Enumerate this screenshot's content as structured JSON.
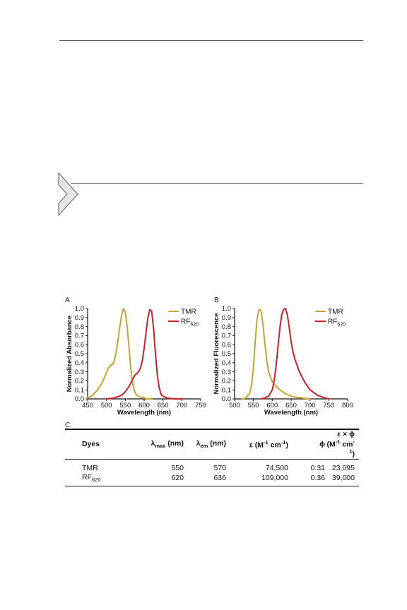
{
  "panels": {
    "a": "A",
    "b": "B",
    "c": "C"
  },
  "colors": {
    "tmr": "#c8a431",
    "rf620": "#cf2027"
  },
  "chart_data": [
    {
      "type": "line",
      "xlabel": "Wavelength (nm)",
      "ylabel": "Normalized Absorbance",
      "xlim": [
        450,
        750
      ],
      "ylim": [
        0,
        1.0
      ],
      "xticks": [
        450,
        500,
        550,
        600,
        650,
        700,
        750
      ],
      "yticks": [
        0.0,
        0.1,
        0.2,
        0.3,
        0.4,
        0.5,
        0.6,
        0.7,
        0.8,
        0.9,
        1.0
      ],
      "legend_position": "top-right",
      "series": [
        {
          "name": "TMR",
          "color": "#c8a431",
          "x": [
            450,
            460,
            470,
            480,
            490,
            500,
            505,
            510,
            515,
            520,
            525,
            530,
            535,
            540,
            545,
            550,
            555,
            560,
            565,
            570,
            575,
            580,
            590,
            600,
            610,
            620
          ],
          "y": [
            0.01,
            0.03,
            0.07,
            0.12,
            0.19,
            0.29,
            0.34,
            0.37,
            0.38,
            0.41,
            0.5,
            0.63,
            0.78,
            0.92,
            1.0,
            0.96,
            0.8,
            0.56,
            0.32,
            0.16,
            0.08,
            0.04,
            0.02,
            0.01,
            0.0,
            0.0
          ]
        },
        {
          "name": "RF620",
          "color": "#cf2027",
          "x": [
            500,
            520,
            540,
            550,
            560,
            570,
            575,
            580,
            585,
            590,
            595,
            600,
            605,
            610,
            615,
            620,
            625,
            630,
            635,
            640,
            645,
            650,
            660,
            680,
            700
          ],
          "y": [
            0.0,
            0.01,
            0.04,
            0.08,
            0.14,
            0.22,
            0.26,
            0.28,
            0.3,
            0.34,
            0.42,
            0.56,
            0.74,
            0.9,
            0.99,
            0.97,
            0.78,
            0.5,
            0.26,
            0.12,
            0.05,
            0.03,
            0.01,
            0.0,
            0.0
          ]
        }
      ]
    },
    {
      "type": "line",
      "xlabel": "Wavelength (nm)",
      "ylabel": "Normalized Fluorescence",
      "xlim": [
        500,
        800
      ],
      "ylim": [
        0,
        1.0
      ],
      "xticks": [
        500,
        550,
        600,
        650,
        700,
        750,
        800
      ],
      "yticks": [
        0.0,
        0.1,
        0.2,
        0.3,
        0.4,
        0.5,
        0.6,
        0.7,
        0.8,
        0.9,
        1.0
      ],
      "legend_position": "top-right",
      "series": [
        {
          "name": "TMR",
          "color": "#c8a431",
          "x": [
            520,
            530,
            540,
            545,
            550,
            555,
            560,
            565,
            570,
            575,
            580,
            585,
            590,
            600,
            610,
            620,
            630,
            640,
            650,
            660,
            680,
            700
          ],
          "y": [
            0.0,
            0.01,
            0.06,
            0.15,
            0.35,
            0.65,
            0.9,
            0.99,
            0.98,
            0.84,
            0.62,
            0.44,
            0.3,
            0.19,
            0.14,
            0.1,
            0.07,
            0.05,
            0.03,
            0.02,
            0.01,
            0.0
          ]
        },
        {
          "name": "RF620",
          "color": "#cf2027",
          "x": [
            570,
            580,
            590,
            600,
            605,
            610,
            615,
            620,
            625,
            630,
            635,
            640,
            645,
            650,
            655,
            660,
            670,
            680,
            690,
            700,
            720,
            740,
            750
          ],
          "y": [
            0.0,
            0.01,
            0.03,
            0.1,
            0.2,
            0.36,
            0.57,
            0.78,
            0.93,
            0.99,
            1.0,
            0.93,
            0.79,
            0.63,
            0.52,
            0.44,
            0.32,
            0.23,
            0.16,
            0.1,
            0.04,
            0.01,
            0.0
          ]
        }
      ]
    },
    {
      "type": "table",
      "headers": [
        "Dyes",
        "λmax (nm)",
        "λem (nm)",
        "ε (M-1 cm-1)",
        "ϕ",
        "ε × ϕ (M-1 cm-1)"
      ],
      "rows": [
        [
          "TMR",
          "550",
          "570",
          "74,500",
          "0.31",
          "23,095"
        ],
        [
          "RF620",
          "620",
          "636",
          "109,000",
          "0.36",
          "39,000"
        ]
      ]
    }
  ],
  "legend": {
    "tmr": "TMR",
    "rf_main": "RF",
    "rf_sub": "620"
  },
  "table": {
    "h_dyes": "Dyes",
    "h_lmax": "λ",
    "h_lmax_sub": "max",
    "h_lmax_unit": " (nm)",
    "h_lem": "λ",
    "h_lem_sub": "em",
    "h_lem_unit": " (nm)",
    "h_eps_a": "ε (M",
    "h_eps_sup1": "-1",
    "h_eps_b": " cm",
    "h_eps_sup2": "-1",
    "h_eps_c": ")",
    "h_phi": "ϕ",
    "h_prod_a": "ε × ϕ (M",
    "h_prod_sup1": "-1",
    "h_prod_b": " cm",
    "h_prod_sup2": "-1",
    "h_prod_c": ")",
    "r1": {
      "dye": "TMR",
      "lmax": "550",
      "lem": "570",
      "eps": "74,500",
      "phi": "0.31",
      "prod": "23,095"
    },
    "r2": {
      "dye_main": "RF",
      "dye_sub": "620",
      "lmax": "620",
      "lem": "636",
      "eps": "109,000",
      "phi": "0.36",
      "prod": "39,000"
    }
  }
}
